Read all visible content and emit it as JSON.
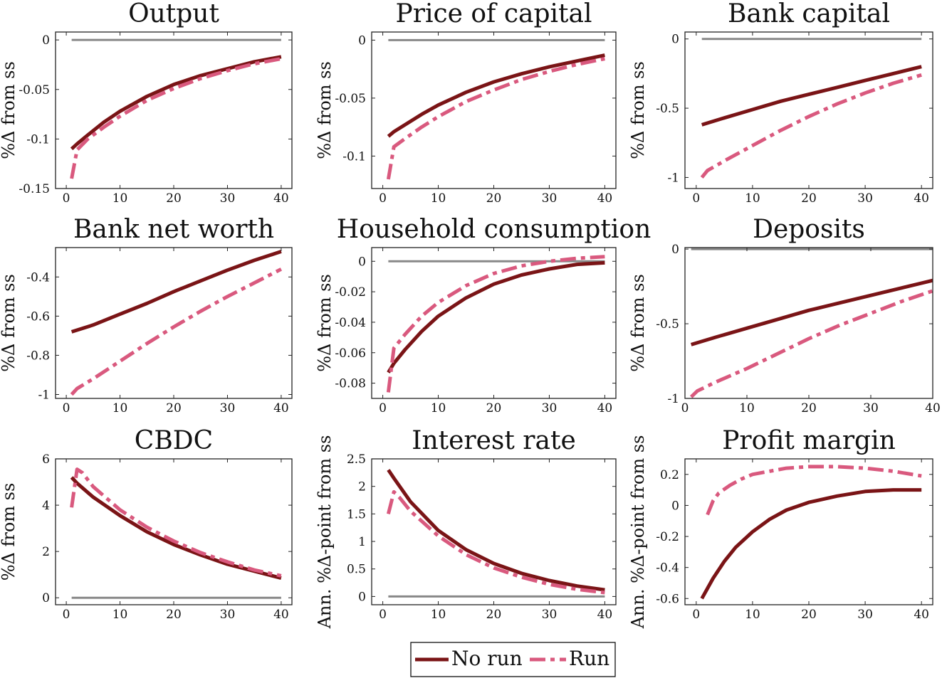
{
  "colors": {
    "no_run": "#7a1416",
    "run": "#d9597e",
    "steady_state": "#888888",
    "axis": "#222222"
  },
  "legend": {
    "no_run_label": "No run",
    "run_label": "Run",
    "placement": "bottom-center"
  },
  "chart_data": [
    {
      "id": "output",
      "type": "line",
      "title": "Output",
      "ylabel": "%Δ from ss",
      "xlim": [
        -2,
        42
      ],
      "ylim": [
        -0.15,
        0.008
      ],
      "xticks": [
        0,
        10,
        20,
        30,
        40
      ],
      "yticks": [
        -0.15,
        -0.1,
        -0.05,
        0
      ],
      "ytick_labels": [
        "-0.15",
        "-0.1",
        "-0.05",
        "0"
      ],
      "ss_value": 0,
      "series": [
        {
          "name": "No run",
          "style": "solid",
          "x": [
            1,
            2,
            4,
            7,
            10,
            15,
            20,
            25,
            30,
            35,
            40
          ],
          "y": [
            -0.11,
            -0.105,
            -0.096,
            -0.083,
            -0.072,
            -0.057,
            -0.045,
            -0.036,
            -0.029,
            -0.022,
            -0.017
          ]
        },
        {
          "name": "Run",
          "style": "dashdot",
          "x": [
            1,
            2,
            4,
            7,
            10,
            15,
            20,
            25,
            30,
            35,
            40
          ],
          "y": [
            -0.14,
            -0.111,
            -0.1,
            -0.088,
            -0.077,
            -0.061,
            -0.049,
            -0.039,
            -0.031,
            -0.024,
            -0.019
          ]
        }
      ]
    },
    {
      "id": "price_of_capital",
      "type": "line",
      "title": "Price of capital",
      "ylabel": "%Δ from ss",
      "xlim": [
        -2,
        42
      ],
      "ylim": [
        -0.128,
        0.007
      ],
      "xticks": [
        0,
        10,
        20,
        30,
        40
      ],
      "yticks": [
        -0.1,
        -0.05,
        0
      ],
      "ytick_labels": [
        "-0.1",
        "-0.05",
        "0"
      ],
      "ss_value": 0,
      "series": [
        {
          "name": "No run",
          "style": "solid",
          "x": [
            1,
            2,
            4,
            7,
            10,
            15,
            20,
            25,
            30,
            35,
            40
          ],
          "y": [
            -0.083,
            -0.079,
            -0.073,
            -0.064,
            -0.056,
            -0.045,
            -0.036,
            -0.029,
            -0.023,
            -0.018,
            -0.013
          ]
        },
        {
          "name": "Run",
          "style": "dashdot",
          "x": [
            1,
            2,
            4,
            7,
            10,
            15,
            20,
            25,
            30,
            35,
            40
          ],
          "y": [
            -0.12,
            -0.092,
            -0.085,
            -0.075,
            -0.066,
            -0.053,
            -0.043,
            -0.034,
            -0.027,
            -0.021,
            -0.016
          ]
        }
      ]
    },
    {
      "id": "bank_capital",
      "type": "line",
      "title": "Bank capital",
      "ylabel": "%Δ from ss",
      "xlim": [
        -2,
        42
      ],
      "ylim": [
        -1.08,
        0.05
      ],
      "xticks": [
        0,
        10,
        20,
        30,
        40
      ],
      "yticks": [
        -1,
        -0.5,
        0
      ],
      "ytick_labels": [
        "-1",
        "-0.5",
        "0"
      ],
      "ss_value": 0,
      "series": [
        {
          "name": "No run",
          "style": "solid",
          "x": [
            1,
            5,
            10,
            15,
            20,
            25,
            30,
            35,
            40
          ],
          "y": [
            -0.62,
            -0.57,
            -0.51,
            -0.45,
            -0.4,
            -0.35,
            -0.3,
            -0.25,
            -0.2
          ]
        },
        {
          "name": "Run",
          "style": "dashdot",
          "x": [
            1,
            2,
            5,
            10,
            15,
            20,
            25,
            30,
            35,
            40
          ],
          "y": [
            -1.0,
            -0.95,
            -0.88,
            -0.77,
            -0.66,
            -0.56,
            -0.47,
            -0.39,
            -0.32,
            -0.26
          ]
        }
      ]
    },
    {
      "id": "bank_net_worth",
      "type": "line",
      "title": "Bank net worth",
      "ylabel": "%Δ from ss",
      "xlim": [
        -2,
        42
      ],
      "ylim": [
        -1.02,
        -0.25
      ],
      "xticks": [
        0,
        10,
        20,
        30,
        40
      ],
      "yticks": [
        -1,
        -0.8,
        -0.6,
        -0.4
      ],
      "ytick_labels": [
        "-1",
        "-0.8",
        "-0.6",
        "-0.4"
      ],
      "ss_value": null,
      "series": [
        {
          "name": "No run",
          "style": "solid",
          "x": [
            1,
            5,
            10,
            15,
            20,
            25,
            30,
            35,
            40
          ],
          "y": [
            -0.68,
            -0.645,
            -0.59,
            -0.535,
            -0.475,
            -0.42,
            -0.365,
            -0.315,
            -0.27
          ]
        },
        {
          "name": "Run",
          "style": "dashdot",
          "x": [
            1,
            2,
            5,
            10,
            15,
            20,
            25,
            30,
            35,
            40
          ],
          "y": [
            -1.0,
            -0.97,
            -0.92,
            -0.83,
            -0.74,
            -0.655,
            -0.575,
            -0.5,
            -0.43,
            -0.36
          ]
        }
      ]
    },
    {
      "id": "household_consumption",
      "type": "line",
      "title": "Household consumption",
      "ylabel": "%Δ from ss",
      "xlim": [
        -2,
        42
      ],
      "ylim": [
        -0.09,
        0.009
      ],
      "xticks": [
        0,
        10,
        20,
        30,
        40
      ],
      "yticks": [
        -0.08,
        -0.06,
        -0.04,
        -0.02,
        0
      ],
      "ytick_labels": [
        "-0.08",
        "-0.06",
        "-0.04",
        "-0.02",
        "0"
      ],
      "ss_value": 0,
      "series": [
        {
          "name": "No run",
          "style": "solid",
          "x": [
            1,
            2,
            4,
            7,
            10,
            15,
            20,
            25,
            30,
            35,
            40
          ],
          "y": [
            -0.073,
            -0.067,
            -0.058,
            -0.046,
            -0.036,
            -0.024,
            -0.015,
            -0.009,
            -0.005,
            -0.002,
            -0.001
          ]
        },
        {
          "name": "Run",
          "style": "dashdot",
          "x": [
            1,
            2,
            4,
            7,
            10,
            15,
            20,
            25,
            30,
            35,
            40
          ],
          "y": [
            -0.086,
            -0.057,
            -0.048,
            -0.036,
            -0.027,
            -0.016,
            -0.008,
            -0.003,
            0.0,
            0.002,
            0.003
          ]
        }
      ]
    },
    {
      "id": "deposits",
      "type": "line",
      "title": "Deposits",
      "ylabel": "%Δ from ss",
      "xlim": [
        0,
        40
      ],
      "ylim": [
        -1.0,
        0.01
      ],
      "xticks": [
        0,
        10,
        20,
        30,
        40
      ],
      "yticks": [
        -1,
        -0.5,
        0
      ],
      "ytick_labels": [
        "-1",
        "-0.5",
        "0"
      ],
      "ss_value": 0,
      "series": [
        {
          "name": "No run",
          "style": "solid",
          "x": [
            1,
            5,
            10,
            15,
            20,
            25,
            30,
            35,
            40
          ],
          "y": [
            -0.64,
            -0.59,
            -0.53,
            -0.47,
            -0.41,
            -0.36,
            -0.31,
            -0.26,
            -0.21
          ]
        },
        {
          "name": "Run",
          "style": "dashdot",
          "x": [
            1,
            2,
            5,
            10,
            15,
            20,
            25,
            30,
            35,
            40
          ],
          "y": [
            -0.99,
            -0.95,
            -0.89,
            -0.8,
            -0.7,
            -0.6,
            -0.51,
            -0.43,
            -0.35,
            -0.28
          ]
        }
      ]
    },
    {
      "id": "cbdc",
      "type": "line",
      "title": "CBDC",
      "ylabel": "%Δ from ss",
      "xlim": [
        -2,
        42
      ],
      "ylim": [
        -0.3,
        6.0
      ],
      "xticks": [
        0,
        10,
        20,
        30,
        40
      ],
      "yticks": [
        0,
        2,
        4,
        6
      ],
      "ytick_labels": [
        "0",
        "2",
        "4",
        "6"
      ],
      "ss_value": 0,
      "series": [
        {
          "name": "No run",
          "style": "solid",
          "x": [
            1,
            2,
            5,
            10,
            15,
            20,
            25,
            30,
            35,
            40
          ],
          "y": [
            5.2,
            4.95,
            4.35,
            3.55,
            2.85,
            2.3,
            1.85,
            1.45,
            1.15,
            0.85
          ]
        },
        {
          "name": "Run",
          "style": "dashdot",
          "x": [
            1,
            2,
            3,
            5,
            10,
            15,
            20,
            25,
            30,
            35,
            40
          ],
          "y": [
            3.9,
            5.55,
            5.4,
            4.8,
            3.8,
            3.05,
            2.45,
            1.95,
            1.55,
            1.2,
            0.95
          ]
        }
      ]
    },
    {
      "id": "interest_rate",
      "type": "line",
      "title": "Interest rate",
      "ylabel": "Ann. %Δ-point from ss",
      "xlim": [
        -2,
        42
      ],
      "ylim": [
        -0.15,
        2.5
      ],
      "xticks": [
        0,
        10,
        20,
        30,
        40
      ],
      "yticks": [
        0,
        0.5,
        1,
        1.5,
        2,
        2.5
      ],
      "ytick_labels": [
        "0",
        "0.5",
        "1",
        "1.5",
        "2",
        "2.5"
      ],
      "ss_value": 0,
      "series": [
        {
          "name": "No run",
          "style": "solid",
          "x": [
            1,
            2,
            5,
            10,
            15,
            20,
            25,
            30,
            35,
            40
          ],
          "y": [
            2.3,
            2.15,
            1.72,
            1.2,
            0.85,
            0.6,
            0.42,
            0.29,
            0.19,
            0.12
          ]
        },
        {
          "name": "Run",
          "style": "dashdot",
          "x": [
            1,
            2,
            3,
            5,
            10,
            15,
            20,
            25,
            30,
            35,
            40
          ],
          "y": [
            1.5,
            1.9,
            1.8,
            1.55,
            1.1,
            0.76,
            0.52,
            0.35,
            0.22,
            0.13,
            0.07
          ]
        }
      ]
    },
    {
      "id": "profit_margin",
      "type": "line",
      "title": "Profit margin",
      "ylabel": "Ann. %Δ-point from ss",
      "xlim": [
        -2,
        42
      ],
      "ylim": [
        -0.64,
        0.3
      ],
      "xticks": [
        0,
        10,
        20,
        30,
        40
      ],
      "yticks": [
        -0.6,
        -0.4,
        -0.2,
        0,
        0.2
      ],
      "ytick_labels": [
        "-0.6",
        "-0.4",
        "-0.2",
        "0",
        "0.2"
      ],
      "ss_value": null,
      "series": [
        {
          "name": "No run",
          "style": "solid",
          "x": [
            1,
            3,
            5,
            7,
            10,
            13,
            16,
            20,
            25,
            30,
            35,
            40
          ],
          "y": [
            -0.6,
            -0.47,
            -0.36,
            -0.27,
            -0.17,
            -0.09,
            -0.03,
            0.02,
            0.06,
            0.09,
            0.1,
            0.1
          ]
        },
        {
          "name": "Run",
          "style": "dashdot",
          "x": [
            2,
            3,
            4,
            6,
            8,
            10,
            13,
            16,
            20,
            25,
            30,
            35,
            40
          ],
          "y": [
            -0.06,
            0.03,
            0.08,
            0.13,
            0.17,
            0.2,
            0.22,
            0.24,
            0.25,
            0.25,
            0.24,
            0.22,
            0.19
          ]
        }
      ]
    }
  ]
}
